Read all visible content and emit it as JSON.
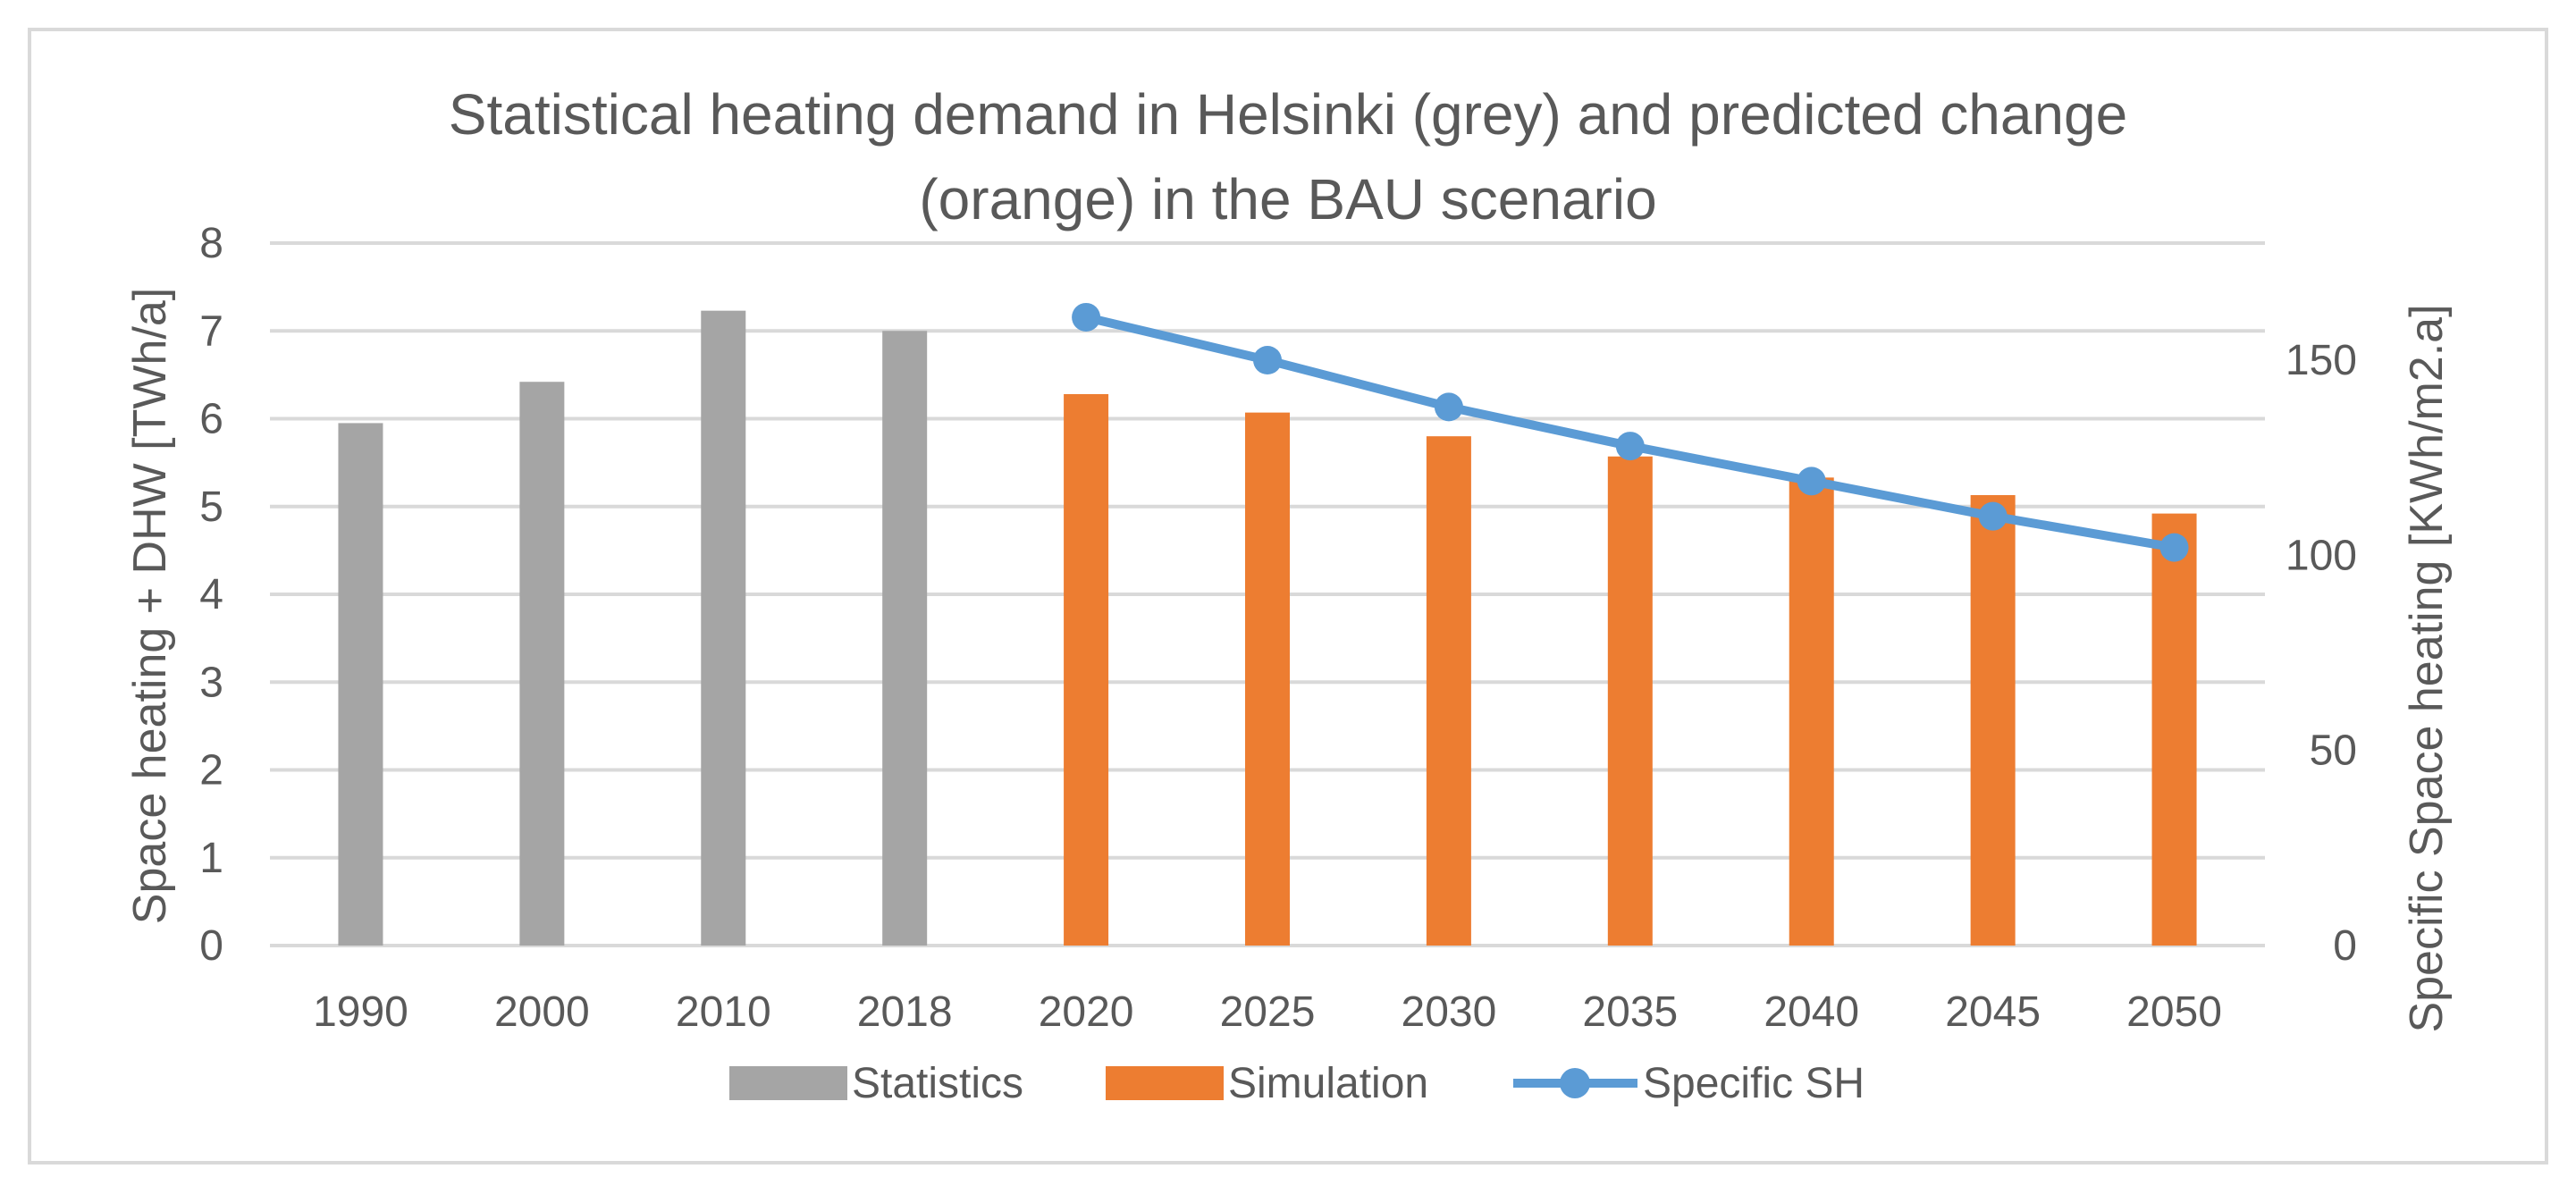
{
  "chart_data": {
    "type": "bar",
    "title_lines": [
      "Statistical heating demand in Helsinki (grey) and predicted change",
      "(orange) in the BAU scenario"
    ],
    "categories": [
      "1990",
      "2000",
      "2010",
      "2018",
      "2020",
      "2025",
      "2030",
      "2035",
      "2040",
      "2045",
      "2050"
    ],
    "series": [
      {
        "name": "Statistics",
        "type": "bar",
        "axis": "left",
        "color": "#a5a5a5",
        "values": [
          5.95,
          6.42,
          7.23,
          7.0,
          null,
          null,
          null,
          null,
          null,
          null,
          null
        ]
      },
      {
        "name": "Simulation",
        "type": "bar",
        "axis": "left",
        "color": "#ed7d31",
        "values": [
          null,
          null,
          null,
          null,
          6.28,
          6.07,
          5.8,
          5.57,
          5.33,
          5.13,
          4.92
        ]
      },
      {
        "name": "Specific SH",
        "type": "line",
        "axis": "right",
        "color": "#5b9bd5",
        "values": [
          null,
          null,
          null,
          null,
          161,
          150,
          138,
          128,
          119,
          110,
          102
        ]
      }
    ],
    "ylabel": "Space heating + DHW [TWh/a]",
    "y2label": "Specific Space heating  [KWh/m2.a]",
    "ylim": [
      0,
      8
    ],
    "y_ticks": [
      0,
      1,
      2,
      3,
      4,
      5,
      6,
      7,
      8
    ],
    "y2lim": [
      0,
      180
    ],
    "y2_ticks": [
      0,
      50,
      100,
      150
    ],
    "grid": true,
    "legend": "bottom",
    "gridline_color": "#d9d9d9"
  }
}
